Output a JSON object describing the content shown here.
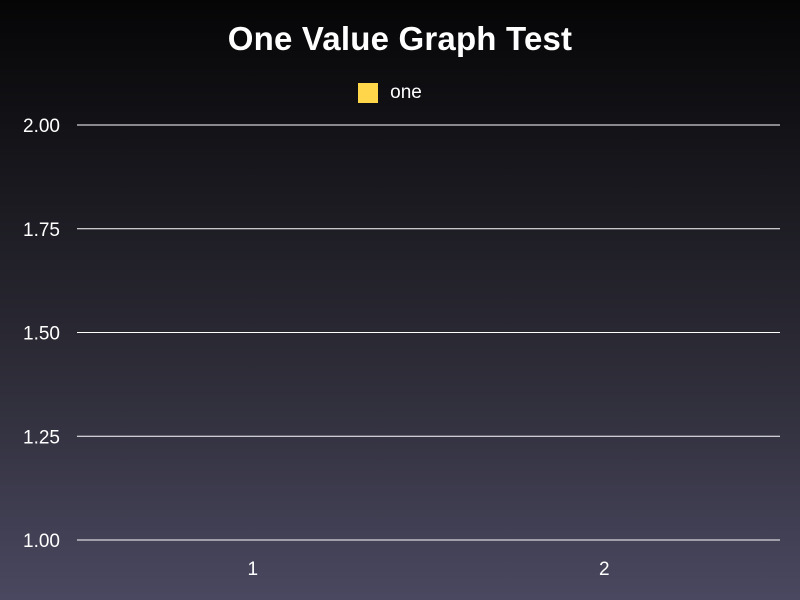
{
  "chart_data": {
    "type": "bar",
    "title": "One Value Graph Test",
    "categories": [
      "1",
      "2"
    ],
    "series": [
      {
        "name": "one",
        "values": [
          null,
          null
        ],
        "color": "#ffd54a"
      }
    ],
    "ylim": [
      1.0,
      2.0
    ],
    "yticks": [
      "1.00",
      "1.25",
      "1.50",
      "1.75",
      "2.00"
    ],
    "grid": true,
    "legend_position": "top"
  },
  "colors": {
    "gridline": "#ffffff",
    "text": "#ffffff"
  }
}
